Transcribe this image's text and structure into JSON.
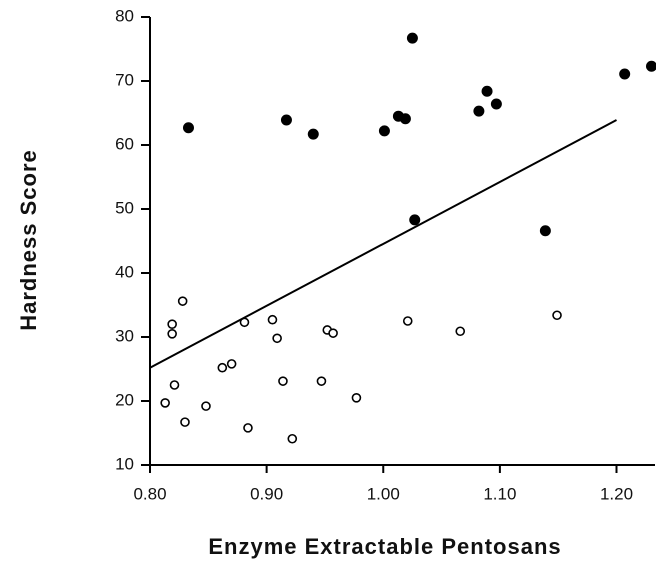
{
  "chart_data": {
    "type": "scatter",
    "xlabel": "Enzyme Extractable Pentosans",
    "ylabel": "Hardness Score",
    "xlim": [
      0.8,
      1.233
    ],
    "ylim": [
      10,
      80
    ],
    "xticks": [
      {
        "value": 0.8,
        "label": "0.80"
      },
      {
        "value": 0.9,
        "label": "0.90"
      },
      {
        "value": 1.0,
        "label": "1.00"
      },
      {
        "value": 1.1,
        "label": "1.10"
      },
      {
        "value": 1.2,
        "label": "1.20"
      }
    ],
    "yticks": [
      10,
      20,
      30,
      40,
      50,
      60,
      70,
      80
    ],
    "series": [
      {
        "color": "#000000",
        "marker": "filled",
        "x": [
          0.833,
          0.917,
          0.94,
          1.001,
          1.013,
          1.019,
          1.025,
          1.027,
          1.082,
          1.089,
          1.097,
          1.139,
          1.207,
          1.23
        ],
        "values": [
          62.7,
          63.9,
          61.7,
          62.2,
          64.5,
          64.1,
          76.7,
          48.3,
          65.3,
          68.4,
          66.4,
          46.6,
          71.1,
          72.3
        ]
      },
      {
        "color": "#000000",
        "marker": "open",
        "x": [
          0.828,
          0.819,
          0.819,
          0.813,
          0.821,
          0.83,
          0.848,
          0.862,
          0.87,
          0.881,
          0.884,
          0.905,
          0.909,
          0.914,
          0.922,
          0.947,
          0.952,
          0.957,
          0.977,
          1.021,
          1.066,
          1.149
        ],
        "values": [
          35.6,
          32.0,
          30.5,
          19.7,
          22.5,
          16.7,
          19.2,
          25.2,
          25.8,
          32.3,
          15.8,
          32.7,
          29.8,
          23.1,
          14.1,
          23.1,
          31.1,
          30.6,
          20.5,
          32.5,
          30.9,
          33.4
        ]
      }
    ],
    "fit_line": {
      "x": [
        0.8,
        1.2
      ],
      "values": [
        25.2,
        63.9
      ]
    }
  }
}
